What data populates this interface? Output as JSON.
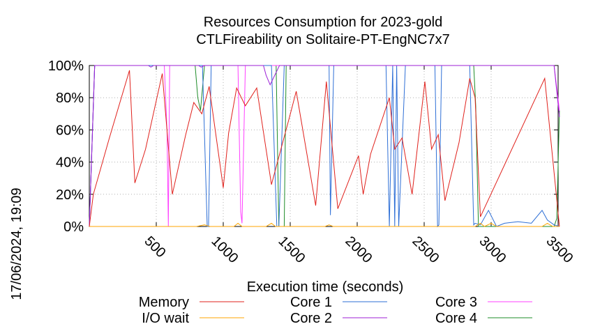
{
  "chart_data": {
    "type": "line",
    "title": [
      "Resources Consumption for 2023-gold",
      "CTLFireability on Solitaire-PT-EngNC7x7"
    ],
    "xlabel": "Execution time (seconds)",
    "side_label": "17/06/2024, 19:09",
    "xlim": [
      0,
      3500
    ],
    "ylim": [
      0,
      100
    ],
    "x_ticks": [
      500,
      1000,
      1500,
      2000,
      2500,
      3000,
      3500
    ],
    "x_tick_labels": [
      "500",
      "1000",
      "1500",
      "2000",
      "2500",
      "3000",
      "3500"
    ],
    "y_ticks": [
      0,
      20,
      40,
      60,
      80,
      100
    ],
    "y_tick_labels": [
      "0%",
      "20%",
      "40%",
      "60%",
      "80%",
      "100%"
    ],
    "grid": true,
    "legend_position": "bottom",
    "series": [
      {
        "name": "Memory",
        "color": "#e0201b",
        "x": [
          0,
          30,
          150,
          300,
          340,
          420,
          545,
          620,
          720,
          780,
          840,
          895,
          1000,
          1040,
          1100,
          1165,
          1250,
          1360,
          1495,
          1545,
          1690,
          1770,
          1855,
          2010,
          2045,
          2100,
          2240,
          2280,
          2335,
          2410,
          2505,
          2555,
          2605,
          2655,
          2760,
          2840,
          2880,
          2920,
          3400,
          3510
        ],
        "y": [
          0,
          20,
          55,
          97,
          27,
          48,
          95,
          20,
          57,
          77,
          70,
          87,
          24,
          58,
          86,
          75,
          86,
          26,
          68,
          84,
          13,
          90,
          11,
          44,
          20,
          45,
          80,
          48,
          55,
          20,
          90,
          48,
          57,
          16,
          52,
          92,
          80,
          6,
          92,
          0
        ]
      },
      {
        "name": "I/O wait",
        "color": "#ffa500",
        "x": [
          0,
          800,
          860,
          900,
          1080,
          1110,
          1140,
          1320,
          1360,
          1390,
          1760,
          1790,
          1820,
          2880,
          2920,
          2950,
          3000,
          3040,
          3380,
          3420,
          3460,
          3510
        ],
        "y": [
          0,
          0,
          1,
          0,
          0,
          2,
          0,
          0,
          2,
          0,
          0,
          1,
          0,
          0,
          2,
          0,
          2,
          0,
          0,
          2,
          0,
          0
        ]
      },
      {
        "name": "Core 1",
        "color": "#2e6fd6",
        "x": [
          0,
          40,
          845,
          880,
          890,
          910,
          1360,
          1400,
          1415,
          1455,
          1790,
          1800,
          1825,
          2215,
          2240,
          2265,
          2280,
          2295,
          2310,
          2360,
          2580,
          2600,
          2610,
          2630,
          2840,
          2870,
          2880,
          2920,
          2980,
          3040,
          3100,
          3200,
          3300,
          3380,
          3420,
          3470,
          3510
        ],
        "y": [
          0,
          100,
          100,
          0,
          0,
          100,
          100,
          0,
          0,
          100,
          100,
          7,
          100,
          100,
          0,
          100,
          0,
          100,
          0,
          100,
          100,
          0,
          1,
          100,
          100,
          1,
          2,
          1,
          10,
          0,
          2,
          3,
          2,
          10,
          4,
          1,
          0
        ]
      },
      {
        "name": "Core 2",
        "color": "#9c1fd6",
        "x": [
          0,
          40,
          440,
          460,
          480,
          800,
          815,
          835,
          860,
          880,
          1300,
          1320,
          1350,
          1420,
          1435,
          1455,
          1600,
          1620,
          2160,
          2180,
          2400,
          2420,
          2820,
          2860,
          3470,
          3510
        ],
        "y": [
          0,
          100,
          100,
          99,
          100,
          100,
          100,
          99,
          100,
          100,
          100,
          94,
          88,
          100,
          100,
          100,
          100,
          100,
          100,
          100,
          100,
          100,
          100,
          100,
          100,
          68
        ]
      },
      {
        "name": "Core 3",
        "color": "#ff40ff",
        "x": [
          0,
          40,
          560,
          580,
          590,
          600,
          610,
          1110,
          1130,
          1140,
          1165,
          1185,
          2880,
          2900,
          3440,
          3470,
          3510
        ],
        "y": [
          0,
          100,
          100,
          60,
          0,
          100,
          100,
          100,
          9,
          2,
          100,
          100,
          100,
          100,
          100,
          100,
          72
        ]
      },
      {
        "name": "Core 4",
        "color": "#1e8c28",
        "x": [
          0,
          40,
          790,
          810,
          830,
          860,
          880,
          1395,
          1415,
          1455,
          1470,
          1485,
          2870,
          2885,
          2905,
          3470,
          3490,
          3510
        ],
        "y": [
          0,
          100,
          100,
          80,
          72,
          100,
          100,
          100,
          0,
          0,
          100,
          100,
          100,
          75,
          0,
          0,
          5,
          72
        ]
      }
    ]
  }
}
